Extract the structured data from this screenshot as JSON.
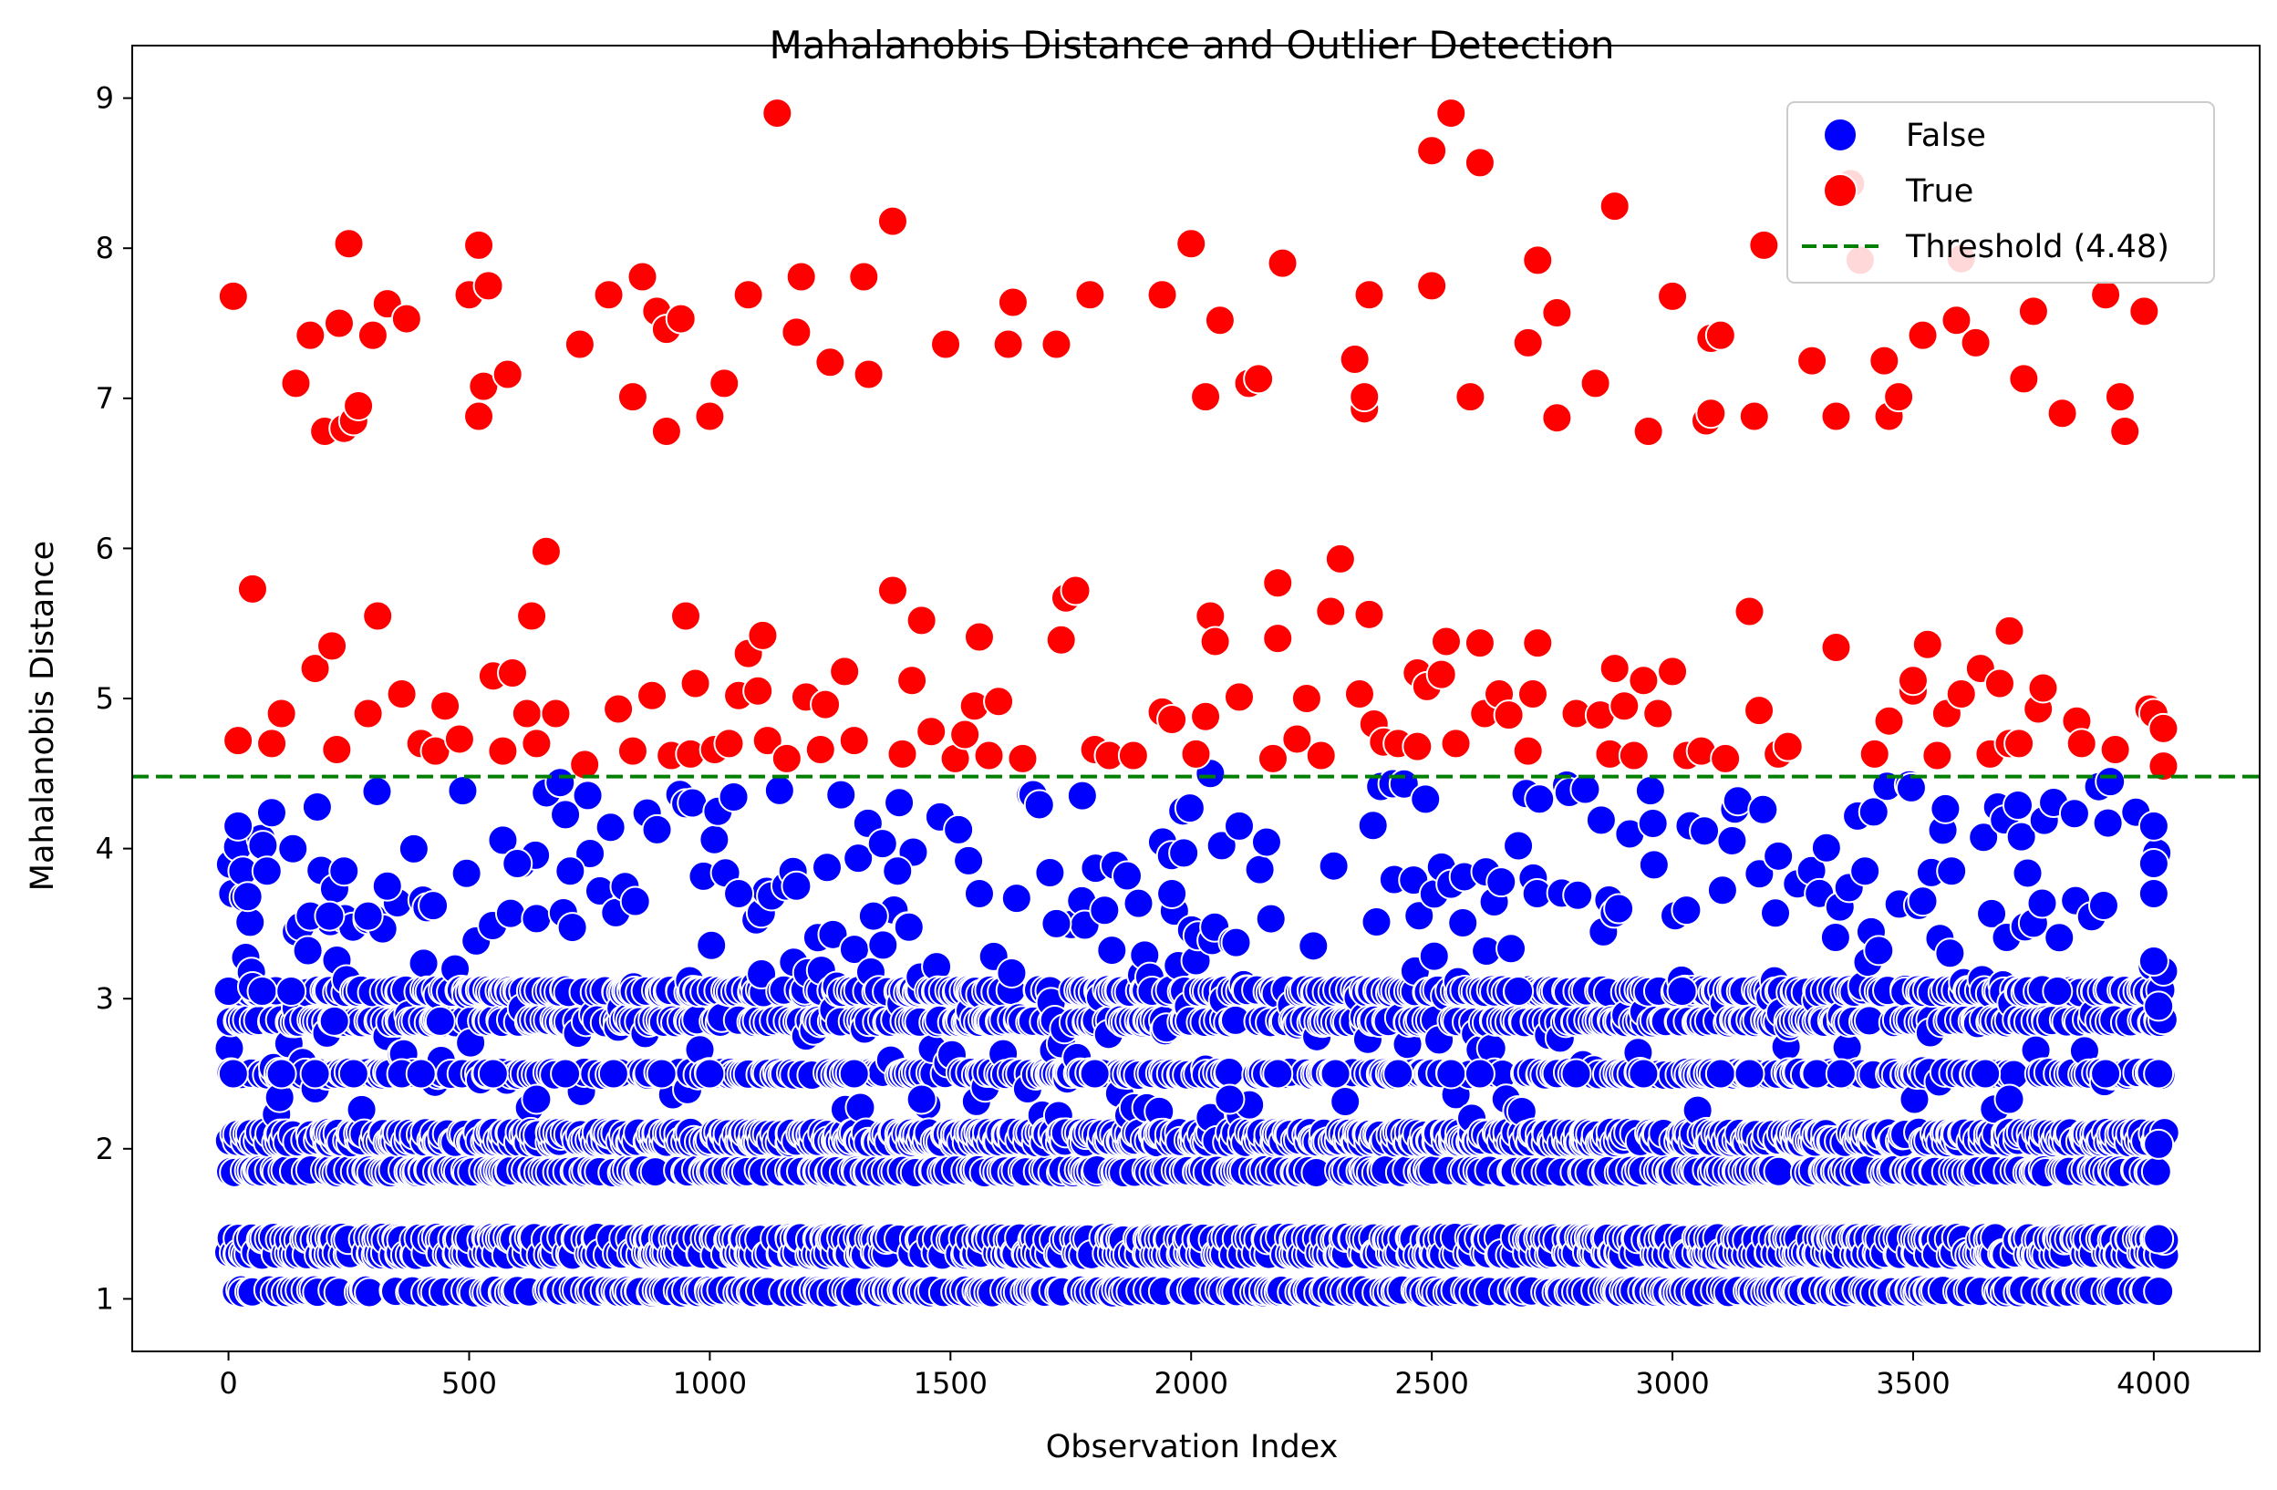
{
  "chart_data": {
    "type": "scatter",
    "title": "Mahalanobis Distance and Outlier Detection",
    "xlabel": "Observation Index",
    "ylabel": "Mahalanobis Distance",
    "xlim": [
      -200,
      4220
    ],
    "ylim": [
      0.65,
      9.35
    ],
    "xticks": [
      0,
      500,
      1000,
      1500,
      2000,
      2500,
      3000,
      3500,
      4000
    ],
    "yticks": [
      1,
      2,
      3,
      4,
      5,
      6,
      7,
      8,
      9
    ],
    "grid": false,
    "legend": {
      "placement": "top-right",
      "entries": [
        {
          "label": "False",
          "color": "#0000ff",
          "kind": "marker"
        },
        {
          "label": "True",
          "color": "#ff0000",
          "kind": "marker"
        },
        {
          "label": "Threshold (4.48)",
          "color": "#008000",
          "kind": "dashed-line"
        }
      ]
    },
    "threshold": {
      "value": 4.48,
      "color": "#008000",
      "style": "dashed"
    },
    "n_observations": 4020,
    "series": [
      {
        "name": "True",
        "color": "#ff0000",
        "points": [
          [
            10,
            7.68
          ],
          [
            20,
            4.72
          ],
          [
            50,
            5.73
          ],
          [
            90,
            4.7
          ],
          [
            110,
            4.9
          ],
          [
            140,
            7.1
          ],
          [
            170,
            7.42
          ],
          [
            180,
            5.2
          ],
          [
            200,
            6.78
          ],
          [
            215,
            5.35
          ],
          [
            225,
            4.66
          ],
          [
            230,
            7.5
          ],
          [
            240,
            6.8
          ],
          [
            250,
            8.03
          ],
          [
            260,
            6.85
          ],
          [
            270,
            6.95
          ],
          [
            290,
            4.9
          ],
          [
            300,
            7.42
          ],
          [
            310,
            5.55
          ],
          [
            330,
            7.63
          ],
          [
            370,
            7.53
          ],
          [
            360,
            5.03
          ],
          [
            400,
            4.7
          ],
          [
            430,
            4.65
          ],
          [
            450,
            4.95
          ],
          [
            480,
            4.73
          ],
          [
            500,
            7.69
          ],
          [
            520,
            8.02
          ],
          [
            520,
            6.88
          ],
          [
            530,
            7.08
          ],
          [
            540,
            7.75
          ],
          [
            550,
            5.15
          ],
          [
            570,
            4.65
          ],
          [
            580,
            7.16
          ],
          [
            590,
            5.17
          ],
          [
            620,
            4.9
          ],
          [
            630,
            5.55
          ],
          [
            640,
            4.7
          ],
          [
            660,
            5.98
          ],
          [
            680,
            4.9
          ],
          [
            730,
            7.36
          ],
          [
            740,
            4.56
          ],
          [
            790,
            7.69
          ],
          [
            810,
            4.93
          ],
          [
            840,
            4.65
          ],
          [
            840,
            7.01
          ],
          [
            860,
            7.81
          ],
          [
            880,
            5.02
          ],
          [
            890,
            7.58
          ],
          [
            910,
            6.78
          ],
          [
            910,
            7.46
          ],
          [
            920,
            4.62
          ],
          [
            940,
            7.53
          ],
          [
            950,
            5.55
          ],
          [
            960,
            4.63
          ],
          [
            970,
            5.1
          ],
          [
            1000,
            6.88
          ],
          [
            1010,
            4.66
          ],
          [
            1030,
            7.1
          ],
          [
            1040,
            4.7
          ],
          [
            1060,
            5.02
          ],
          [
            1080,
            7.69
          ],
          [
            1080,
            5.3
          ],
          [
            1100,
            5.05
          ],
          [
            1110,
            5.42
          ],
          [
            1120,
            4.72
          ],
          [
            1140,
            8.9
          ],
          [
            1160,
            4.6
          ],
          [
            1180,
            7.44
          ],
          [
            1190,
            7.81
          ],
          [
            1200,
            5.01
          ],
          [
            1230,
            4.66
          ],
          [
            1240,
            4.96
          ],
          [
            1250,
            7.24
          ],
          [
            1280,
            5.18
          ],
          [
            1300,
            4.72
          ],
          [
            1320,
            7.81
          ],
          [
            1330,
            7.16
          ],
          [
            1380,
            5.72
          ],
          [
            1380,
            8.18
          ],
          [
            1400,
            4.63
          ],
          [
            1420,
            5.12
          ],
          [
            1440,
            5.52
          ],
          [
            1460,
            4.78
          ],
          [
            1490,
            7.36
          ],
          [
            1510,
            4.6
          ],
          [
            1530,
            4.76
          ],
          [
            1550,
            4.95
          ],
          [
            1560,
            5.41
          ],
          [
            1580,
            4.62
          ],
          [
            1600,
            4.98
          ],
          [
            1620,
            7.36
          ],
          [
            1630,
            7.64
          ],
          [
            1650,
            4.6
          ],
          [
            1720,
            7.36
          ],
          [
            1730,
            5.39
          ],
          [
            1740,
            5.67
          ],
          [
            1760,
            5.72
          ],
          [
            1790,
            7.69
          ],
          [
            1800,
            4.66
          ],
          [
            1830,
            4.62
          ],
          [
            1880,
            4.62
          ],
          [
            1940,
            7.69
          ],
          [
            1940,
            4.91
          ],
          [
            1960,
            4.86
          ],
          [
            2000,
            8.03
          ],
          [
            2010,
            4.63
          ],
          [
            2030,
            7.01
          ],
          [
            2030,
            4.88
          ],
          [
            2040,
            5.55
          ],
          [
            2050,
            5.38
          ],
          [
            2060,
            7.52
          ],
          [
            2100,
            5.01
          ],
          [
            2120,
            7.1
          ],
          [
            2140,
            7.13
          ],
          [
            2170,
            4.6
          ],
          [
            2180,
            5.4
          ],
          [
            2180,
            5.77
          ],
          [
            2190,
            7.9
          ],
          [
            2220,
            4.73
          ],
          [
            2240,
            5.0
          ],
          [
            2270,
            4.62
          ],
          [
            2290,
            5.58
          ],
          [
            2310,
            5.93
          ],
          [
            2340,
            7.26
          ],
          [
            2350,
            5.03
          ],
          [
            2360,
            6.93
          ],
          [
            2360,
            7.01
          ],
          [
            2370,
            5.56
          ],
          [
            2370,
            7.69
          ],
          [
            2380,
            4.83
          ],
          [
            2400,
            4.71
          ],
          [
            2430,
            4.7
          ],
          [
            2470,
            5.17
          ],
          [
            2470,
            4.68
          ],
          [
            2490,
            5.08
          ],
          [
            2500,
            7.75
          ],
          [
            2500,
            8.65
          ],
          [
            2520,
            5.16
          ],
          [
            2530,
            5.38
          ],
          [
            2540,
            8.9
          ],
          [
            2550,
            4.7
          ],
          [
            2580,
            7.01
          ],
          [
            2600,
            8.57
          ],
          [
            2600,
            5.37
          ],
          [
            2610,
            4.9
          ],
          [
            2640,
            5.03
          ],
          [
            2660,
            4.89
          ],
          [
            2700,
            7.37
          ],
          [
            2700,
            4.65
          ],
          [
            2710,
            5.03
          ],
          [
            2720,
            5.37
          ],
          [
            2720,
            7.92
          ],
          [
            2760,
            6.87
          ],
          [
            2760,
            7.57
          ],
          [
            2800,
            4.9
          ],
          [
            2840,
            7.1
          ],
          [
            2850,
            4.89
          ],
          [
            2870,
            4.63
          ],
          [
            2880,
            8.28
          ],
          [
            2880,
            5.2
          ],
          [
            2900,
            4.95
          ],
          [
            2920,
            4.62
          ],
          [
            2940,
            5.12
          ],
          [
            2950,
            6.78
          ],
          [
            2970,
            4.9
          ],
          [
            3000,
            7.68
          ],
          [
            3000,
            5.18
          ],
          [
            3030,
            4.62
          ],
          [
            3060,
            4.65
          ],
          [
            3070,
            6.85
          ],
          [
            3080,
            6.9
          ],
          [
            3080,
            7.4
          ],
          [
            3100,
            7.42
          ],
          [
            3110,
            4.6
          ],
          [
            3160,
            5.58
          ],
          [
            3170,
            6.88
          ],
          [
            3180,
            4.92
          ],
          [
            3190,
            8.02
          ],
          [
            3220,
            4.63
          ],
          [
            3240,
            4.68
          ],
          [
            3290,
            7.25
          ],
          [
            3340,
            6.88
          ],
          [
            3340,
            5.34
          ],
          [
            3370,
            8.43
          ],
          [
            3390,
            7.92
          ],
          [
            3420,
            4.63
          ],
          [
            3440,
            7.25
          ],
          [
            3450,
            4.85
          ],
          [
            3450,
            6.88
          ],
          [
            3470,
            7.01
          ],
          [
            3500,
            5.05
          ],
          [
            3500,
            5.12
          ],
          [
            3520,
            7.42
          ],
          [
            3530,
            5.36
          ],
          [
            3550,
            4.62
          ],
          [
            3570,
            4.9
          ],
          [
            3590,
            7.52
          ],
          [
            3600,
            7.93
          ],
          [
            3600,
            5.03
          ],
          [
            3630,
            7.37
          ],
          [
            3640,
            5.2
          ],
          [
            3660,
            4.63
          ],
          [
            3680,
            5.1
          ],
          [
            3700,
            4.7
          ],
          [
            3700,
            5.45
          ],
          [
            3720,
            4.7
          ],
          [
            3730,
            7.13
          ],
          [
            3750,
            7.58
          ],
          [
            3760,
            4.93
          ],
          [
            3770,
            5.07
          ],
          [
            3810,
            6.9
          ],
          [
            3840,
            4.85
          ],
          [
            3850,
            4.7
          ],
          [
            3900,
            7.69
          ],
          [
            3920,
            4.66
          ],
          [
            3930,
            7.01
          ],
          [
            3940,
            6.78
          ],
          [
            3980,
            7.58
          ],
          [
            3990,
            4.93
          ],
          [
            4000,
            4.9
          ],
          [
            4020,
            4.8
          ],
          [
            4020,
            4.55
          ]
        ]
      },
      {
        "name": "False",
        "color": "#0000ff",
        "generated": true,
        "levels": [
          1.05,
          1.3,
          1.4,
          1.85,
          2.05,
          2.1,
          2.5,
          2.85,
          3.05
        ],
        "upper_band": [
          2.2,
          4.45
        ],
        "x_range": [
          0,
          4020
        ],
        "highlighted": [
          [
            0,
            3.05
          ],
          [
            10,
            2.5
          ],
          [
            20,
            4.15
          ],
          [
            30,
            3.85
          ],
          [
            40,
            3.68
          ],
          [
            50,
            3.08
          ],
          [
            70,
            3.05
          ],
          [
            80,
            3.85
          ],
          [
            110,
            2.5
          ],
          [
            130,
            3.05
          ],
          [
            170,
            3.55
          ],
          [
            180,
            2.5
          ],
          [
            210,
            3.55
          ],
          [
            220,
            2.85
          ],
          [
            240,
            3.85
          ],
          [
            260,
            2.5
          ],
          [
            290,
            3.55
          ],
          [
            330,
            3.75
          ],
          [
            360,
            2.5
          ],
          [
            400,
            2.5
          ],
          [
            440,
            2.85
          ],
          [
            550,
            2.5
          ],
          [
            600,
            3.9
          ],
          [
            640,
            2.33
          ],
          [
            700,
            2.5
          ],
          [
            710,
            3.85
          ],
          [
            800,
            2.5
          ],
          [
            900,
            2.5
          ],
          [
            1000,
            2.5
          ],
          [
            1060,
            3.7
          ],
          [
            1180,
            3.75
          ],
          [
            1300,
            2.5
          ],
          [
            1340,
            3.55
          ],
          [
            1390,
            3.85
          ],
          [
            1440,
            2.33
          ],
          [
            1560,
            3.7
          ],
          [
            1720,
            3.5
          ],
          [
            1800,
            2.5
          ],
          [
            1960,
            3.7
          ],
          [
            2040,
            4.5
          ],
          [
            2080,
            2.33
          ],
          [
            2100,
            4.15
          ],
          [
            2180,
            2.5
          ],
          [
            2300,
            2.5
          ],
          [
            2430,
            2.5
          ],
          [
            2540,
            2.5
          ],
          [
            2600,
            2.5
          ],
          [
            2680,
            3.05
          ],
          [
            2800,
            2.5
          ],
          [
            2940,
            2.5
          ],
          [
            3020,
            3.05
          ],
          [
            3100,
            2.5
          ],
          [
            3160,
            2.5
          ],
          [
            3220,
            3.95
          ],
          [
            3300,
            2.5
          ],
          [
            3350,
            2.5
          ],
          [
            3400,
            3.85
          ],
          [
            3520,
            3.65
          ],
          [
            3580,
            3.85
          ],
          [
            3650,
            2.5
          ],
          [
            3700,
            2.33
          ],
          [
            3800,
            3.05
          ],
          [
            3900,
            2.5
          ],
          [
            4000,
            3.25
          ],
          [
            4010,
            2.95
          ],
          [
            4010,
            2.5
          ],
          [
            4010,
            2.03
          ],
          [
            4010,
            1.4
          ],
          [
            4010,
            1.05
          ],
          [
            4000,
            3.7
          ],
          [
            4000,
            3.9
          ],
          [
            4000,
            4.15
          ]
        ]
      }
    ]
  }
}
